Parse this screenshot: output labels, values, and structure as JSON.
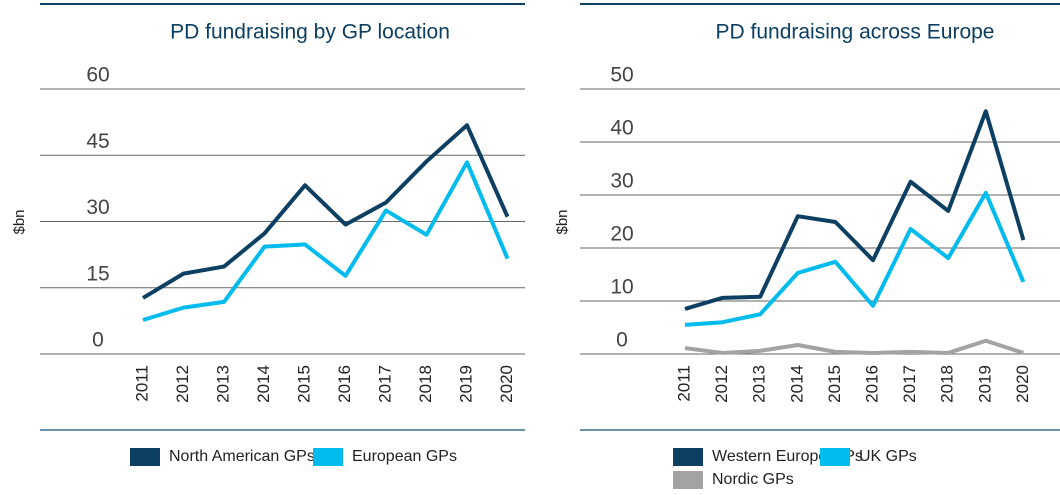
{
  "chart_data": [
    {
      "type": "line",
      "title": "PD fundraising by GP location",
      "y_label": "$bn",
      "categories": [
        "2011",
        "2012",
        "2013",
        "2014",
        "2015",
        "2016",
        "2017",
        "2018",
        "2019",
        "2020"
      ],
      "ylim": [
        0,
        60
      ],
      "yticks": [
        0,
        15,
        30,
        45,
        60
      ],
      "grid": true,
      "series": [
        {
          "name": "North American GPs",
          "color": "#0d3f63",
          "values": [
            12.7,
            18.2,
            19.8,
            27.3,
            38.2,
            29.3,
            34.3,
            43.6,
            51.8,
            31.1
          ]
        },
        {
          "name": "European GPs",
          "color": "#00bbee",
          "values": [
            7.7,
            10.5,
            11.8,
            24.3,
            24.8,
            17.7,
            32.5,
            27,
            43.4,
            21.6
          ]
        }
      ]
    },
    {
      "type": "line",
      "title": "PD fundraising across Europe",
      "y_label": "$bn",
      "categories": [
        "2011",
        "2012",
        "2013",
        "2014",
        "2015",
        "2016",
        "2017",
        "2018",
        "2019",
        "2020"
      ],
      "ylim": [
        0,
        50
      ],
      "yticks": [
        0,
        10,
        20,
        30,
        40,
        50
      ],
      "grid": true,
      "series": [
        {
          "name": "Western Europe GPs",
          "color": "#0d3f63",
          "values": [
            8.5,
            10.6,
            10.8,
            26,
            24.9,
            17.7,
            32.5,
            27,
            45.8,
            21.5
          ]
        },
        {
          "name": "UK GPs",
          "color": "#00bbee",
          "values": [
            5.5,
            6,
            7.5,
            15.3,
            17.4,
            9.1,
            23.6,
            18.1,
            30.4,
            13.6
          ]
        },
        {
          "name": "Nordic GPs",
          "color": "#a3a3a3",
          "values": [
            1.1,
            0.2,
            0.6,
            1.7,
            0.4,
            0.2,
            0.4,
            0.2,
            2.5,
            0.2
          ]
        }
      ]
    }
  ]
}
